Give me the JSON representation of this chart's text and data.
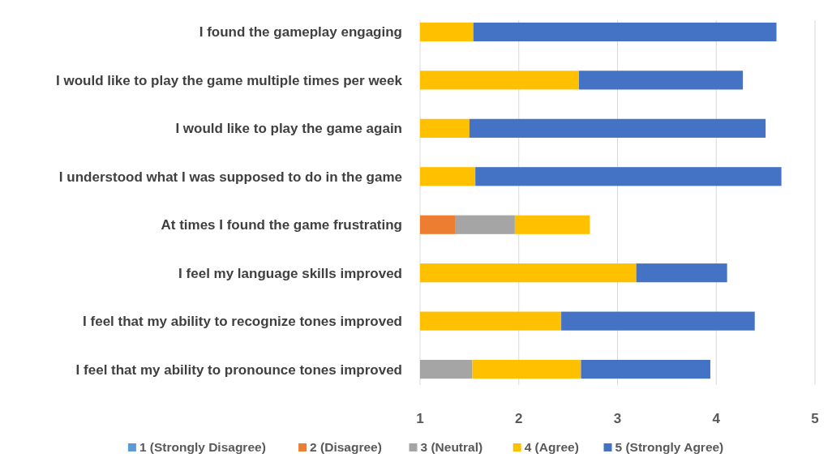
{
  "chart_data": {
    "type": "bar",
    "orientation": "horizontal",
    "categories": [
      "I found the gameplay engaging",
      "I would like to play the game multiple times per week",
      "I would like to play the game again",
      "I understood what I was supposed to do in the game",
      "At times I found the game frustrating",
      "I feel my language skills improved",
      "I feel that my ability to recognize tones improved",
      "I feel that my ability to pronounce tones improved"
    ],
    "series": [
      {
        "name": "1 (Strongly Disagree)",
        "color": "#5b9bd5",
        "values": [
          null,
          null,
          null,
          null,
          null,
          null,
          null,
          null
        ],
        "base": [
          null,
          null,
          null,
          null,
          null,
          null,
          null,
          null
        ]
      },
      {
        "name": "2 (Disagree)",
        "color": "#ed7d31",
        "values": [
          null,
          null,
          null,
          null,
          0.36,
          null,
          null,
          null
        ],
        "base": [
          null,
          null,
          null,
          null,
          1,
          null,
          null,
          null
        ]
      },
      {
        "name": "3 (Neutral)",
        "color": "#a5a5a5",
        "values": [
          null,
          null,
          null,
          null,
          0.6,
          null,
          null,
          0.53
        ],
        "base": [
          null,
          null,
          null,
          null,
          1.36,
          null,
          null,
          1
        ]
      },
      {
        "name": "4 (Agree)",
        "color": "#ffc000",
        "values": [
          0.54,
          1.61,
          0.5,
          0.56,
          0.76,
          2.19,
          1.43,
          1.1
        ],
        "base": [
          1,
          1,
          1,
          1,
          1.96,
          1,
          1,
          1.53
        ]
      },
      {
        "name": "5 (Strongly Agree)",
        "color": "#4472c4",
        "values": [
          3.07,
          1.66,
          3.0,
          3.1,
          null,
          0.92,
          1.96,
          1.31
        ],
        "base": [
          1.54,
          2.61,
          1.5,
          1.56,
          null,
          3.19,
          2.43,
          2.63
        ]
      }
    ],
    "xlim": [
      1,
      5
    ],
    "xticks": [
      1,
      2,
      3,
      4,
      5
    ],
    "grid": "x",
    "legend": "bottom"
  }
}
